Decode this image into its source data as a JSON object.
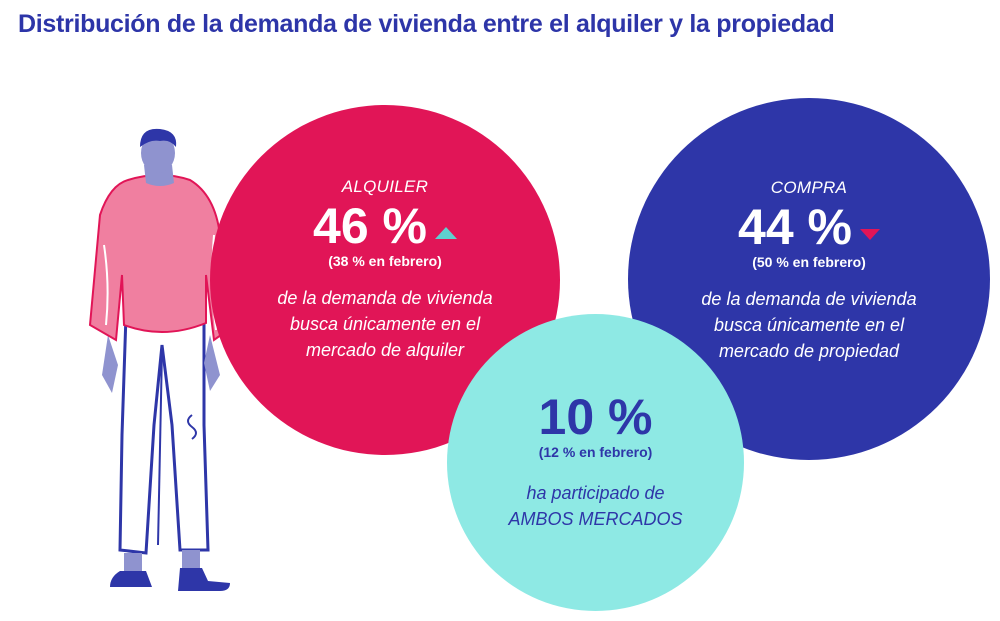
{
  "title": "Distribución de la demanda de vivienda entre el alquiler y la propiedad",
  "colors": {
    "title": "#2d35a8",
    "rent": "#e11557",
    "buy": "#2e36a8",
    "both": "#8ee9e4",
    "up_arrow": "#5ed0cf",
    "down_arrow": "#e11557"
  },
  "circles": {
    "rent": {
      "label": "ALQUILER",
      "percent": "46 %",
      "trend": "up",
      "previous": "(38 % en febrero)",
      "desc_line1": "de la demanda de vivienda",
      "desc_line2": "busca únicamente en el",
      "desc_line3": "mercado de alquiler"
    },
    "buy": {
      "label": "COMPRA",
      "percent": "44 %",
      "trend": "down",
      "previous": "(50 % en febrero)",
      "desc_line1": "de la demanda de vivienda",
      "desc_line2": "busca únicamente en el",
      "desc_line3": "mercado de propiedad"
    },
    "both": {
      "percent": "10 %",
      "previous": "(12 % en febrero)",
      "desc_line1": "ha participado de",
      "desc_line2": "AMBOS MERCADOS"
    }
  },
  "icons": {
    "person": "standing-person-illustration",
    "up": "triangle-up-icon",
    "down": "triangle-down-icon"
  }
}
